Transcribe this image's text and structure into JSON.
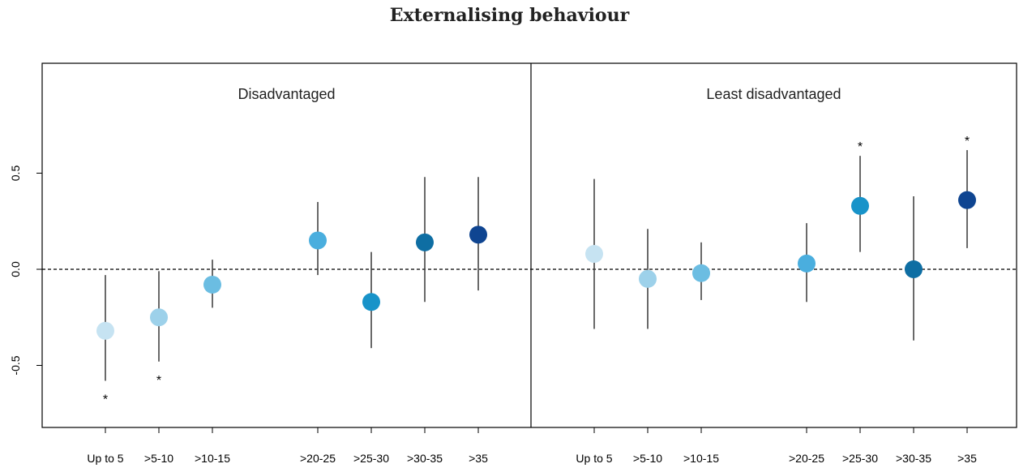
{
  "title": "Externalising behaviour",
  "chart_data": {
    "type": "scatter",
    "title": "Externalising behaviour",
    "xlabel": "",
    "ylabel": "",
    "ylim": [
      -0.82,
      1.08
    ],
    "yticks": [
      "0.5",
      "0.0",
      "-0.5"
    ],
    "ytick_values": [
      0.5,
      0.0,
      -0.5
    ],
    "reference_line": 0,
    "categories": [
      "Up to 5",
      ">5-10",
      ">10-15",
      ">20-25",
      ">25-30",
      ">30-35",
      ">35"
    ],
    "colors": [
      "#c6e3f2",
      "#9dd1ea",
      "#6bbde2",
      "#4aaede",
      "#1893c9",
      "#0e6ea3",
      "#0f4591"
    ],
    "panels": [
      {
        "name": "Disadvantaged",
        "points": [
          {
            "category": "Up to 5",
            "estimate": -0.32,
            "lower": -0.58,
            "upper": -0.03,
            "significant": true,
            "star": "*"
          },
          {
            "category": ">5-10",
            "estimate": -0.25,
            "lower": -0.48,
            "upper": -0.01,
            "significant": true,
            "star": "*"
          },
          {
            "category": ">10-15",
            "estimate": -0.08,
            "lower": -0.2,
            "upper": 0.05,
            "significant": false,
            "star": ""
          },
          {
            "category": ">20-25",
            "estimate": 0.15,
            "lower": -0.03,
            "upper": 0.35,
            "significant": false,
            "star": ""
          },
          {
            "category": ">25-30",
            "estimate": -0.17,
            "lower": -0.41,
            "upper": 0.09,
            "significant": false,
            "star": ""
          },
          {
            "category": ">30-35",
            "estimate": 0.14,
            "lower": -0.17,
            "upper": 0.48,
            "significant": false,
            "star": ""
          },
          {
            "category": ">35",
            "estimate": 0.18,
            "lower": -0.11,
            "upper": 0.48,
            "significant": false,
            "star": ""
          }
        ]
      },
      {
        "name": "Least disadvantaged",
        "points": [
          {
            "category": "Up to 5",
            "estimate": 0.08,
            "lower": -0.31,
            "upper": 0.47,
            "significant": false,
            "star": ""
          },
          {
            "category": ">5-10",
            "estimate": -0.05,
            "lower": -0.31,
            "upper": 0.21,
            "significant": false,
            "star": ""
          },
          {
            "category": ">10-15",
            "estimate": -0.02,
            "lower": -0.16,
            "upper": 0.14,
            "significant": false,
            "star": ""
          },
          {
            "category": ">20-25",
            "estimate": 0.03,
            "lower": -0.17,
            "upper": 0.24,
            "significant": false,
            "star": ""
          },
          {
            "category": ">25-30",
            "estimate": 0.33,
            "lower": 0.09,
            "upper": 0.59,
            "significant": true,
            "star": "*"
          },
          {
            "category": ">30-35",
            "estimate": 0.0,
            "lower": -0.37,
            "upper": 0.38,
            "significant": false,
            "star": ""
          },
          {
            "category": ">35",
            "estimate": 0.36,
            "lower": 0.11,
            "upper": 0.62,
            "significant": true,
            "star": "*"
          }
        ]
      }
    ]
  }
}
